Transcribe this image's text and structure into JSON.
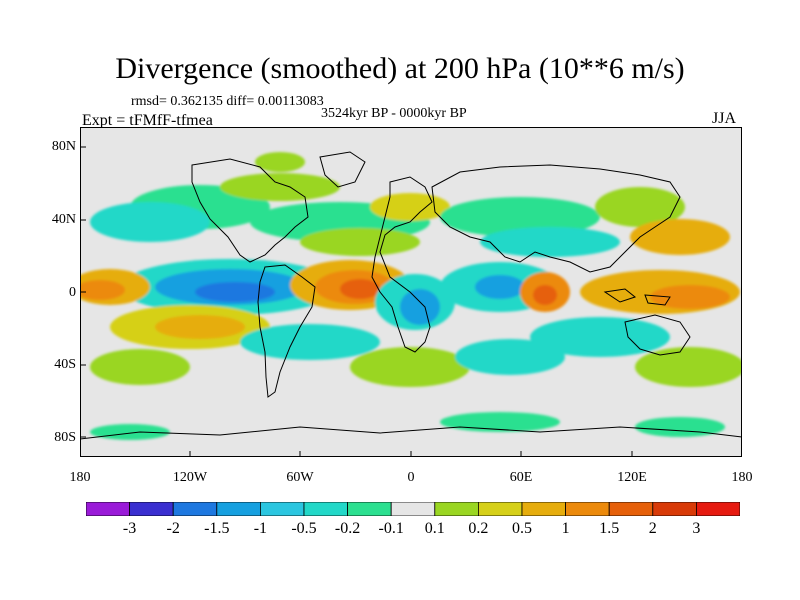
{
  "figure": {
    "title": "Divergence (smoothed) at 200 hPa (10**6 m/s)",
    "stats": "rmsd= 0.362135 diff= 0.00113083",
    "period": "3524kyr BP - 0000kyr BP",
    "experiment": "Expt = tFMfF-tfmea",
    "season": "JJA"
  },
  "axes": {
    "lat_labels": [
      "80N",
      "40N",
      "0",
      "40S",
      "80S"
    ],
    "lon_labels": [
      "180",
      "120W",
      "60W",
      "0",
      "60E",
      "120E",
      "180"
    ]
  },
  "colorbar": {
    "labels": [
      "-3",
      "-2",
      "-1.5",
      "-1",
      "-0.5",
      "-0.2",
      "-0.1",
      "0.1",
      "0.2",
      "0.5",
      "1",
      "1.5",
      "2",
      "3"
    ],
    "colors": [
      "#9a1bd8",
      "#3a2fd0",
      "#1e78e0",
      "#16a0e0",
      "#2bc6e0",
      "#22d8c8",
      "#2ce090",
      "#e6e6e6",
      "#9ad622",
      "#d6d019",
      "#e6ad0d",
      "#ec8a0c",
      "#e6600a",
      "#d83a08",
      "#e61a10"
    ]
  },
  "chart_data": {
    "type": "map",
    "variable": "Divergence (smoothed) at 200 hPa",
    "units": "10**6 m/s",
    "contour_levels": [
      -3,
      -2,
      -1.5,
      -1,
      -0.5,
      -0.2,
      -0.1,
      0.1,
      0.2,
      0.5,
      1,
      1.5,
      2,
      3
    ],
    "lon_range": [
      -180,
      180
    ],
    "lat_range": [
      -90,
      90
    ],
    "features": [
      {
        "name": "tropical-atlantic-max",
        "lon": -40,
        "lat": 5,
        "value": 1.5
      },
      {
        "name": "equatorial-pacific-min",
        "lon": -130,
        "lat": 0,
        "value": -1
      },
      {
        "name": "central-pacific-min",
        "lon": -100,
        "lat": 3,
        "value": -1.5
      },
      {
        "name": "south-america-min",
        "lon": -70,
        "lat": 8,
        "value": -1.5
      },
      {
        "name": "arabian-sea-max",
        "lon": 60,
        "lat": 0,
        "value": 1.5
      },
      {
        "name": "east-africa-min",
        "lon": 10,
        "lat": 5,
        "value": -1
      },
      {
        "name": "indian-ocean-min",
        "lon": 40,
        "lat": -15,
        "value": -0.5
      },
      {
        "name": "west-pacific-max",
        "lon": 150,
        "lat": 5,
        "value": 1
      },
      {
        "name": "southeast-pacific-max",
        "lon": -120,
        "lat": -25,
        "value": 0.5
      },
      {
        "name": "north-atlantic-min",
        "lon": -150,
        "lat": 40,
        "value": -0.5
      }
    ]
  }
}
